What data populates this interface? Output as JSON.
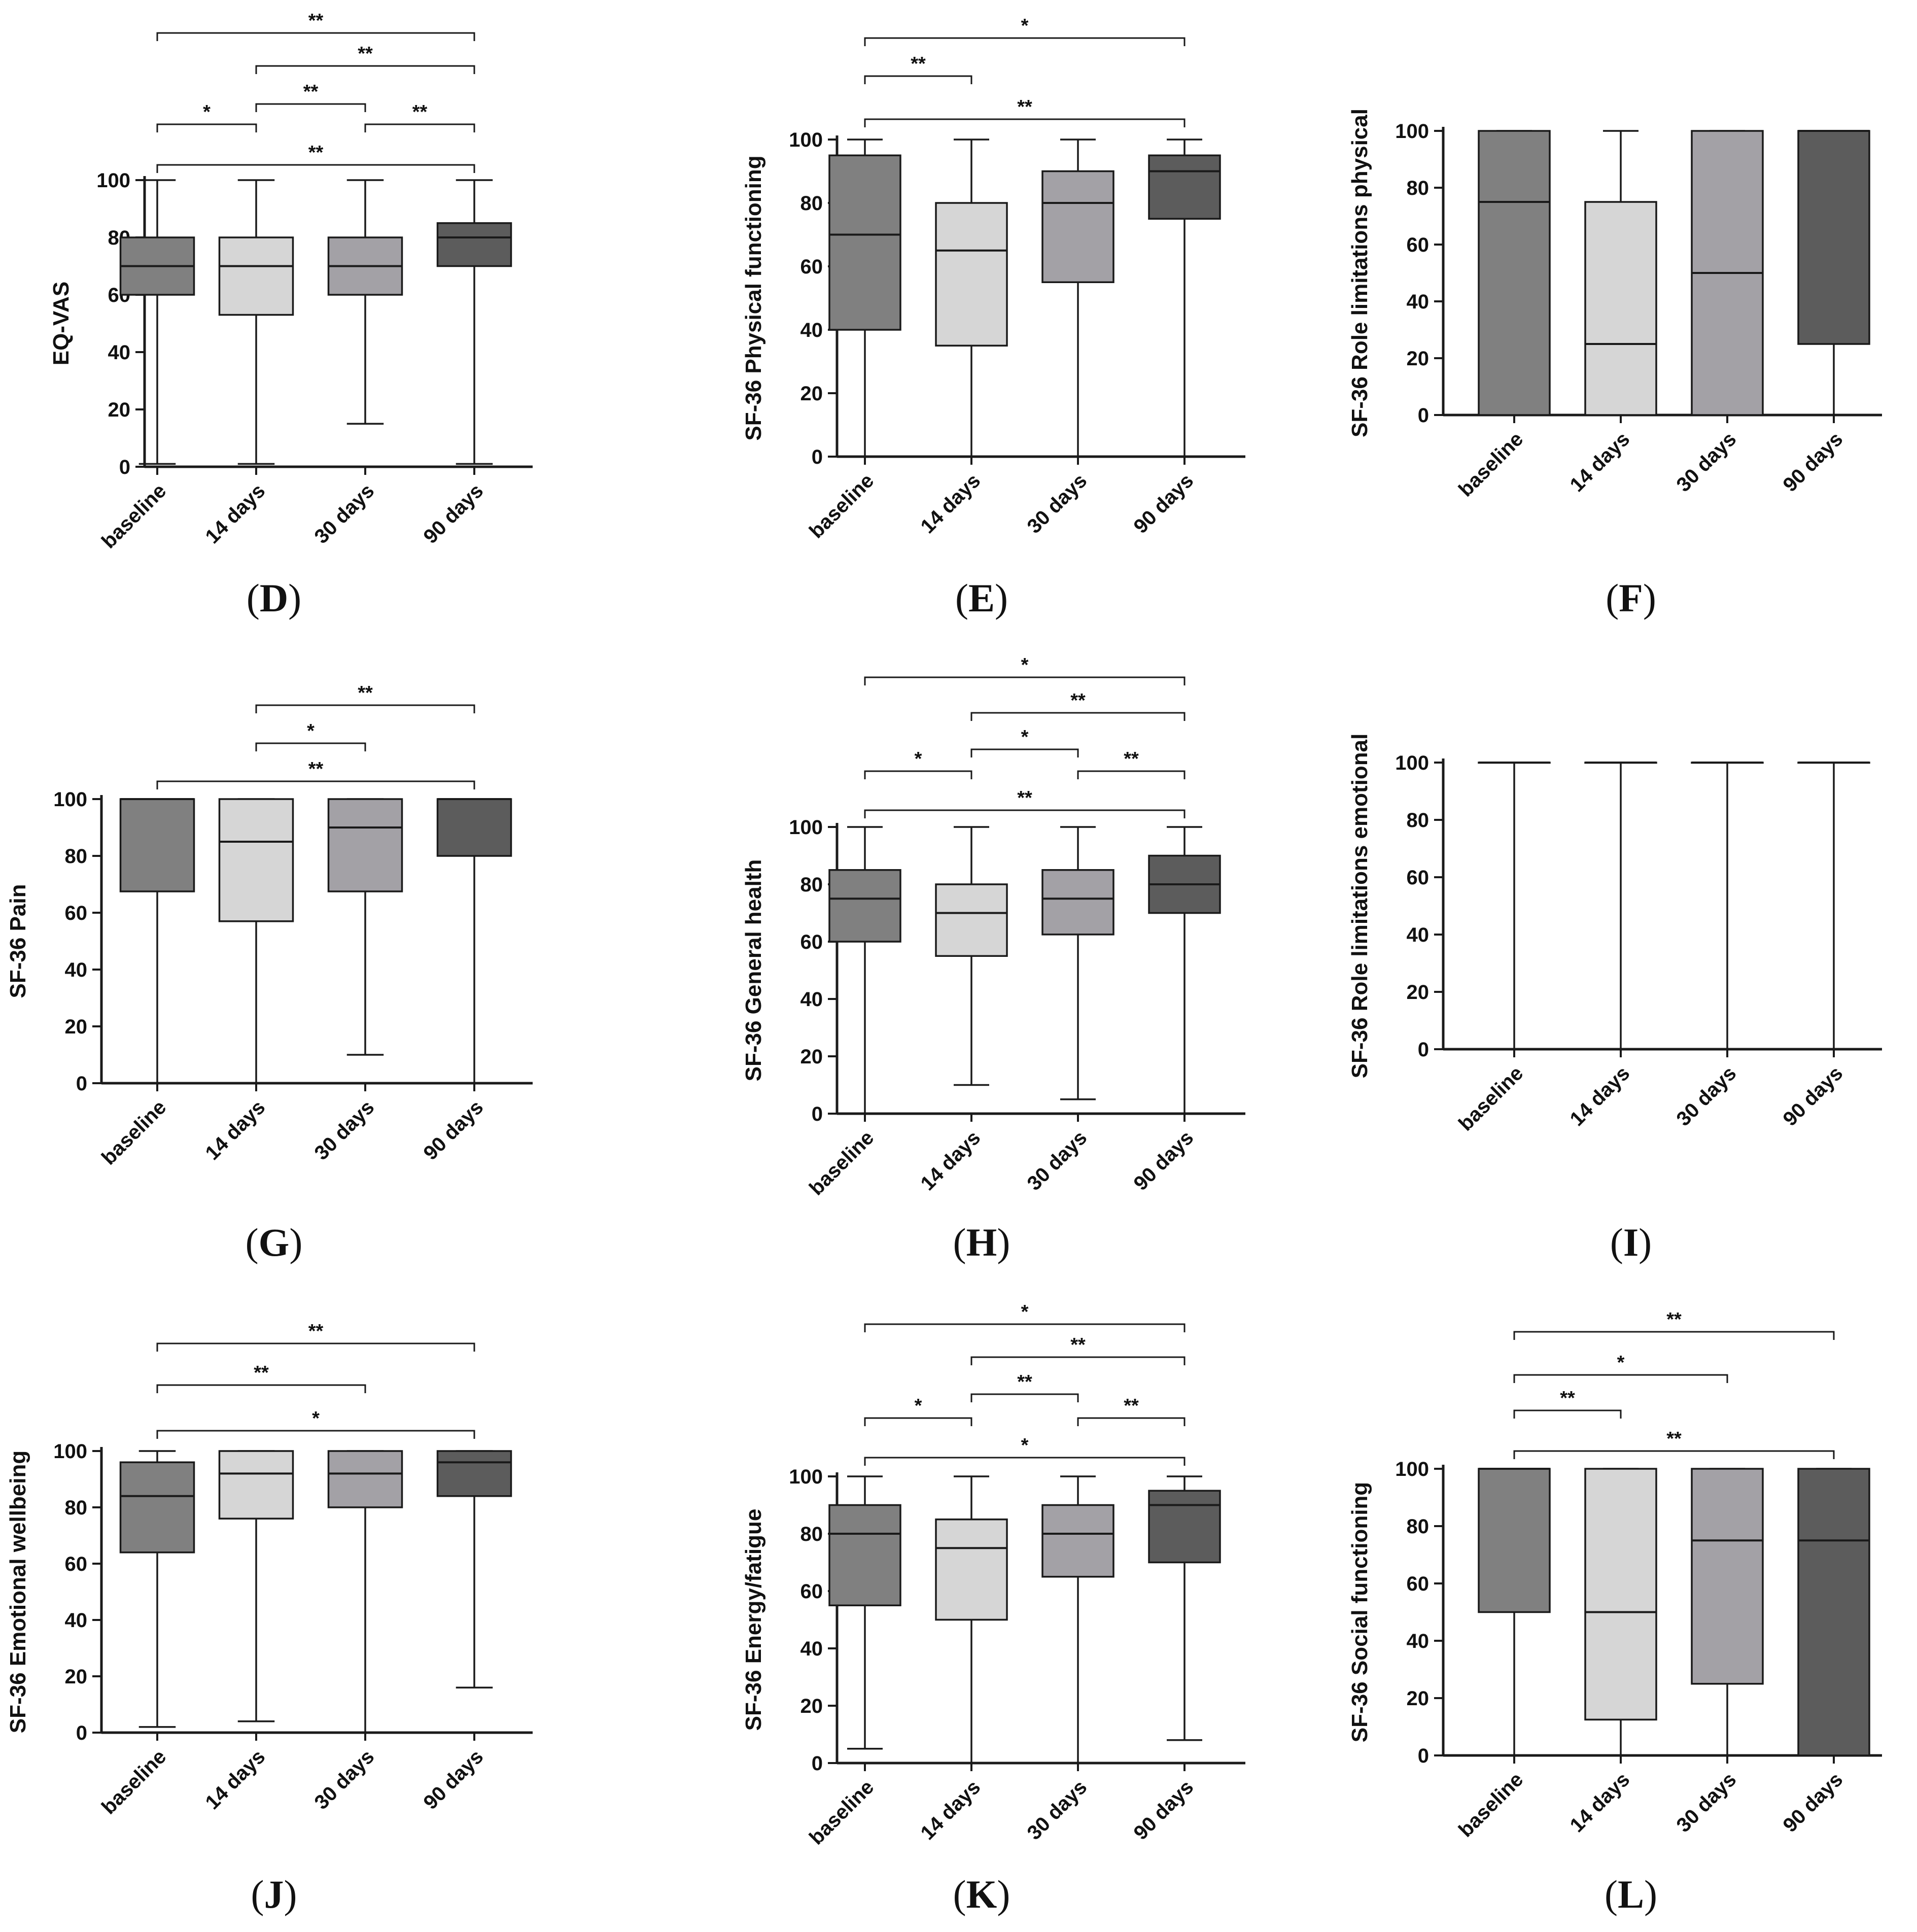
{
  "categories": [
    "baseline",
    "14 days",
    "30 days",
    "90 days"
  ],
  "colors": {
    "baseline": "#808080",
    "14 days": "#d6d6d6",
    "30 days": "#a3a1a6",
    "90 days": "#5c5c5c",
    "line": "#1a1a1a"
  },
  "chart_data": [
    {
      "id": "D",
      "type": "box",
      "label": "D",
      "ylabel": "EQ-VAS",
      "ylim": [
        0,
        100
      ],
      "yticks": [
        0,
        20,
        40,
        60,
        80,
        100
      ],
      "boxes": [
        {
          "category": "baseline",
          "min": 1,
          "q1": 60,
          "median": 70,
          "q3": 80,
          "max": 100
        },
        {
          "category": "14 days",
          "min": 1,
          "q1": 53,
          "median": 70,
          "q3": 80,
          "max": 100
        },
        {
          "category": "30 days",
          "min": 15,
          "q1": 60,
          "median": 70,
          "q3": 80,
          "max": 100
        },
        {
          "category": "90 days",
          "min": 1,
          "q1": 70,
          "median": 80,
          "q3": 85,
          "max": 100
        }
      ],
      "comparisons": [
        {
          "from": 0,
          "to": 3,
          "label": "**"
        },
        {
          "from": 1,
          "to": 3,
          "label": "**"
        },
        {
          "from": 1,
          "to": 2,
          "label": "**"
        },
        {
          "from": 0,
          "to": 1,
          "label": "*"
        },
        {
          "from": 2,
          "to": 3,
          "label": "**"
        },
        {
          "from": 0,
          "to": 3,
          "label": "**"
        }
      ]
    },
    {
      "id": "E",
      "type": "box",
      "label": "E",
      "ylabel": "SF-36 Physical functioning",
      "ylim": [
        0,
        100
      ],
      "yticks": [
        0,
        20,
        40,
        60,
        80,
        100
      ],
      "boxes": [
        {
          "category": "baseline",
          "min": 0,
          "q1": 40,
          "median": 70,
          "q3": 95,
          "max": 100
        },
        {
          "category": "14 days",
          "min": 0,
          "q1": 35,
          "median": 65,
          "q3": 80,
          "max": 100
        },
        {
          "category": "30 days",
          "min": 0,
          "q1": 55,
          "median": 80,
          "q3": 90,
          "max": 100
        },
        {
          "category": "90 days",
          "min": 0,
          "q1": 75,
          "median": 90,
          "q3": 95,
          "max": 100
        }
      ],
      "comparisons": [
        {
          "from": 0,
          "to": 3,
          "label": "*"
        },
        {
          "from": 0,
          "to": 1,
          "label": "**"
        },
        {
          "from": 0,
          "to": 3,
          "label": "**"
        }
      ]
    },
    {
      "id": "F",
      "type": "box",
      "label": "F",
      "ylabel": "SF-36 Role limitations physical",
      "ylim": [
        0,
        100
      ],
      "yticks": [
        0,
        20,
        40,
        60,
        80,
        100
      ],
      "boxes": [
        {
          "category": "baseline",
          "min": 0,
          "q1": 0,
          "median": 75,
          "q3": 100,
          "max": 100
        },
        {
          "category": "14 days",
          "min": 0,
          "q1": 0,
          "median": 25,
          "q3": 75,
          "max": 100
        },
        {
          "category": "30 days",
          "min": 0,
          "q1": 0,
          "median": 50,
          "q3": 100,
          "max": 100
        },
        {
          "category": "90 days",
          "min": 0,
          "q1": 25,
          "median": 100,
          "q3": 100,
          "max": 100
        }
      ],
      "comparisons": []
    },
    {
      "id": "G",
      "type": "box",
      "label": "G",
      "ylabel": "SF-36 Pain",
      "ylim": [
        0,
        100
      ],
      "yticks": [
        0,
        20,
        40,
        60,
        80,
        100
      ],
      "boxes": [
        {
          "category": "baseline",
          "min": 0,
          "q1": 67.5,
          "median": 100,
          "q3": 100,
          "max": 100
        },
        {
          "category": "14 days",
          "min": 0,
          "q1": 57,
          "median": 85,
          "q3": 100,
          "max": 100
        },
        {
          "category": "30 days",
          "min": 10,
          "q1": 67.5,
          "median": 90,
          "q3": 100,
          "max": 100
        },
        {
          "category": "90 days",
          "min": 0,
          "q1": 80,
          "median": 100,
          "q3": 100,
          "max": 100
        }
      ],
      "comparisons": [
        {
          "from": 1,
          "to": 3,
          "label": "**"
        },
        {
          "from": 1,
          "to": 2,
          "label": "*"
        },
        {
          "from": 0,
          "to": 3,
          "label": "**"
        }
      ]
    },
    {
      "id": "H",
      "type": "box",
      "label": "H",
      "ylabel": "SF-36 General health",
      "ylim": [
        0,
        100
      ],
      "yticks": [
        0,
        20,
        40,
        60,
        80,
        100
      ],
      "boxes": [
        {
          "category": "baseline",
          "min": 0,
          "q1": 60,
          "median": 75,
          "q3": 85,
          "max": 100
        },
        {
          "category": "14 days",
          "min": 10,
          "q1": 55,
          "median": 70,
          "q3": 80,
          "max": 100
        },
        {
          "category": "30 days",
          "min": 5,
          "q1": 62.5,
          "median": 75,
          "q3": 85,
          "max": 100
        },
        {
          "category": "90 days",
          "min": 0,
          "q1": 70,
          "median": 80,
          "q3": 90,
          "max": 100
        }
      ],
      "comparisons": [
        {
          "from": 0,
          "to": 3,
          "label": "*"
        },
        {
          "from": 1,
          "to": 3,
          "label": "**"
        },
        {
          "from": 1,
          "to": 2,
          "label": "*"
        },
        {
          "from": 0,
          "to": 1,
          "label": "*"
        },
        {
          "from": 2,
          "to": 3,
          "label": "**"
        },
        {
          "from": 0,
          "to": 3,
          "label": "**"
        }
      ]
    },
    {
      "id": "I",
      "type": "box",
      "label": "I",
      "ylabel": "SF-36 Role limitations emotional",
      "ylim": [
        0,
        100
      ],
      "yticks": [
        0,
        20,
        40,
        60,
        80,
        100
      ],
      "boxes": [
        {
          "category": "baseline",
          "min": 0,
          "q1": 100,
          "median": 100,
          "q3": 100,
          "max": 100
        },
        {
          "category": "14 days",
          "min": 0,
          "q1": 100,
          "median": 100,
          "q3": 100,
          "max": 100
        },
        {
          "category": "30 days",
          "min": 0,
          "q1": 100,
          "median": 100,
          "q3": 100,
          "max": 100
        },
        {
          "category": "90 days",
          "min": 0,
          "q1": 100,
          "median": 100,
          "q3": 100,
          "max": 100
        }
      ],
      "comparisons": []
    },
    {
      "id": "J",
      "type": "box",
      "label": "J",
      "ylabel": "SF-36 Emotional wellbeing",
      "ylim": [
        0,
        100
      ],
      "yticks": [
        0,
        20,
        40,
        60,
        80,
        100
      ],
      "boxes": [
        {
          "category": "baseline",
          "min": 2,
          "q1": 64,
          "median": 84,
          "q3": 96,
          "max": 100
        },
        {
          "category": "14 days",
          "min": 4,
          "q1": 76,
          "median": 92,
          "q3": 100,
          "max": 100
        },
        {
          "category": "30 days",
          "min": 0,
          "q1": 80,
          "median": 92,
          "q3": 100,
          "max": 100
        },
        {
          "category": "90 days",
          "min": 16,
          "q1": 84,
          "median": 96,
          "q3": 100,
          "max": 100
        }
      ],
      "comparisons": [
        {
          "from": 0,
          "to": 3,
          "label": "**"
        },
        {
          "from": 0,
          "to": 2,
          "label": "**"
        },
        {
          "from": 0,
          "to": 3,
          "label": "*"
        }
      ]
    },
    {
      "id": "K",
      "type": "box",
      "label": "K",
      "ylabel": "SF-36 Energy/fatigue",
      "ylim": [
        0,
        100
      ],
      "yticks": [
        0,
        20,
        40,
        60,
        80,
        100
      ],
      "boxes": [
        {
          "category": "baseline",
          "min": 5,
          "q1": 55,
          "median": 80,
          "q3": 90,
          "max": 100
        },
        {
          "category": "14 days",
          "min": 0,
          "q1": 50,
          "median": 75,
          "q3": 85,
          "max": 100
        },
        {
          "category": "30 days",
          "min": 0,
          "q1": 65,
          "median": 80,
          "q3": 90,
          "max": 100
        },
        {
          "category": "90 days",
          "min": 8,
          "q1": 70,
          "median": 90,
          "q3": 95,
          "max": 100
        }
      ],
      "comparisons": [
        {
          "from": 0,
          "to": 3,
          "label": "*"
        },
        {
          "from": 1,
          "to": 3,
          "label": "**"
        },
        {
          "from": 1,
          "to": 2,
          "label": "**"
        },
        {
          "from": 0,
          "to": 1,
          "label": "*"
        },
        {
          "from": 2,
          "to": 3,
          "label": "**"
        },
        {
          "from": 0,
          "to": 3,
          "label": "*"
        }
      ]
    },
    {
      "id": "L",
      "type": "box",
      "label": "L",
      "ylabel": "SF-36 Social functioning",
      "ylim": [
        0,
        100
      ],
      "yticks": [
        0,
        20,
        40,
        60,
        80,
        100
      ],
      "boxes": [
        {
          "category": "baseline",
          "min": 0,
          "q1": 50,
          "median": 100,
          "q3": 100,
          "max": 100
        },
        {
          "category": "14 days",
          "min": 0,
          "q1": 12.5,
          "median": 50,
          "q3": 100,
          "max": 100
        },
        {
          "category": "30 days",
          "min": 0,
          "q1": 25,
          "median": 75,
          "q3": 100,
          "max": 100
        },
        {
          "category": "90 days",
          "min": 0,
          "q1": 0,
          "median": 75,
          "q3": 100,
          "max": 100
        }
      ],
      "comparisons": [
        {
          "from": 0,
          "to": 3,
          "label": "**"
        },
        {
          "from": 0,
          "to": 2,
          "label": "*"
        },
        {
          "from": 0,
          "to": 1,
          "label": "**"
        },
        {
          "from": 0,
          "to": 3,
          "label": "**"
        }
      ]
    }
  ]
}
